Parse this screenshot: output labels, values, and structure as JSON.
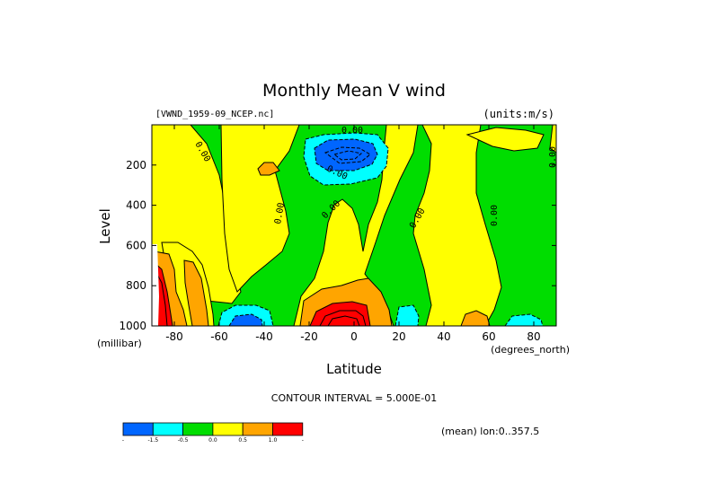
{
  "chart_data": {
    "type": "heatmap",
    "title": "Monthly Mean V wind",
    "dataset_label": "[VWND_1959-09_NCEP.nc]",
    "units_label": "(units:m/s)",
    "xlabel": "Latitude",
    "ylabel": "Level",
    "x_units_label": "(degrees_north)",
    "y_units_label": "(millibar)",
    "xlim": [
      -90,
      90
    ],
    "ylim": [
      1000,
      0
    ],
    "x_ticks": [
      -80,
      -60,
      -40,
      -20,
      0,
      20,
      40,
      60,
      80
    ],
    "y_ticks": [
      200,
      400,
      600,
      800,
      1000
    ],
    "contour_interval_text": "CONTOUR INTERVAL = 5.000E-01",
    "mean_text": "(mean) lon:0..357.5",
    "contour_labels": [
      "0.00",
      "0.00",
      "0.00",
      "0.00",
      "0.00",
      "0.00",
      "0.00"
    ],
    "colorbar": {
      "levels": [
        "-1.5",
        "-0.5",
        "0.0",
        "0.5",
        "1.0"
      ],
      "colors": [
        "#0066ff",
        "#00ffff",
        "#00dd00",
        "#ffff00",
        "#ffa500",
        "#ff0000"
      ]
    },
    "regions": [
      {
        "range": "< -1.5",
        "color": "#0066ff"
      },
      {
        "range": "-1.5 to -0.5",
        "color": "#00ffff"
      },
      {
        "range": "-0.5 to 0.0",
        "color": "#00dd00"
      },
      {
        "range": "0.0 to 0.5",
        "color": "#ffff00"
      },
      {
        "range": "0.5 to 1.0",
        "color": "#ffa500"
      },
      {
        "range": "> 1.0",
        "color": "#ff0000"
      }
    ]
  }
}
